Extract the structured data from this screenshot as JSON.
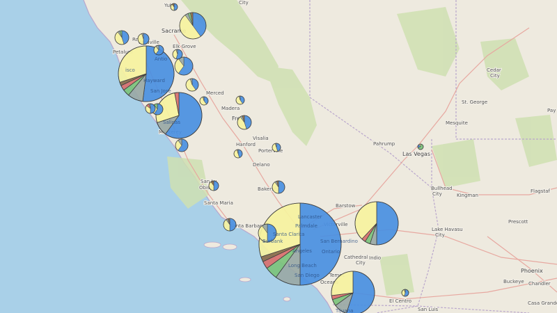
{
  "map": {
    "colors": {
      "ocean": "#a9d0e8",
      "land": "#eeeadf",
      "park": "#cfe0b2",
      "road": "#e7a8a0",
      "border": "#b9a6cc",
      "pie_blue": "#4a90e2",
      "pie_yellow": "#f7f3a0",
      "pie_gray": "#9aa9a6",
      "pie_green": "#7cc47c",
      "pie_red": "#d9706e",
      "pie_brown": "#8b6d4a",
      "pie_stroke": "#333333"
    },
    "places": [
      {
        "name": "Yuba"
      },
      {
        "name": "Sacrame"
      },
      {
        "name": "City"
      },
      {
        "name": "Ros"
      },
      {
        "name": "Vacaville"
      },
      {
        "name": "Elk Grove"
      },
      {
        "name": "Petalum"
      },
      {
        "name": "isco"
      },
      {
        "name": "Antio"
      },
      {
        "name": "Hayward"
      },
      {
        "name": "San Jose"
      },
      {
        "name": "Merced"
      },
      {
        "name": "Madera"
      },
      {
        "name": "Salinas"
      },
      {
        "name": "Monterey"
      },
      {
        "name": "Fre"
      },
      {
        "name": "Visalia"
      },
      {
        "name": "Hanford"
      },
      {
        "name": "Porterville"
      },
      {
        "name": "Delano"
      },
      {
        "name": "San Lu"
      },
      {
        "name": "Obisp"
      },
      {
        "name": "Bakersfi"
      },
      {
        "name": "Santa Maria"
      },
      {
        "name": "Santa Barbara"
      },
      {
        "name": "Lancaster"
      },
      {
        "name": "Palmdale"
      },
      {
        "name": "Barstow"
      },
      {
        "name": "Victorville"
      },
      {
        "name": "Santa Clarita"
      },
      {
        "name": "Burbank"
      },
      {
        "name": "San Bernardino"
      },
      {
        "name": "Angeles"
      },
      {
        "name": "Ontario"
      },
      {
        "name": "Long Beach"
      },
      {
        "name": "San Diego"
      },
      {
        "name": "Cathedral"
      },
      {
        "name": "City"
      },
      {
        "name": "Indio"
      },
      {
        "name": "Temec"
      },
      {
        "name": "Oceans"
      },
      {
        "name": "Tijuana"
      },
      {
        "name": "El Centro"
      },
      {
        "name": "San Luis"
      },
      {
        "name": "Pahrump"
      },
      {
        "name": "Las Vegas"
      },
      {
        "name": "St. George"
      },
      {
        "name": "Mesquite"
      },
      {
        "name": "Cedar"
      },
      {
        "name": "City"
      },
      {
        "name": "Bullhead"
      },
      {
        "name": "City"
      },
      {
        "name": "Kingman"
      },
      {
        "name": "Flagstaf"
      },
      {
        "name": "Lake Havasu"
      },
      {
        "name": "City"
      },
      {
        "name": "Prescott"
      },
      {
        "name": "Phoenix"
      },
      {
        "name": "Buckeye"
      },
      {
        "name": "Chandler"
      },
      {
        "name": "Casa Grande"
      },
      {
        "name": "Pay"
      }
    ],
    "pies": [
      {
        "id": "yuba",
        "slices": [
          {
            "c": "pie_blue",
            "v": 50
          },
          {
            "c": "pie_yellow",
            "v": 40
          },
          {
            "c": "pie_brown",
            "v": 10
          }
        ]
      },
      {
        "id": "sacramento",
        "slices": [
          {
            "c": "pie_blue",
            "v": 40
          },
          {
            "c": "pie_yellow",
            "v": 50
          },
          {
            "c": "pie_gray",
            "v": 4
          },
          {
            "c": "pie_green",
            "v": 3
          },
          {
            "c": "pie_brown",
            "v": 3
          }
        ]
      },
      {
        "id": "santa-rosa",
        "slices": [
          {
            "c": "pie_blue",
            "v": 45
          },
          {
            "c": "pie_yellow",
            "v": 45
          },
          {
            "c": "pie_gray",
            "v": 5
          },
          {
            "c": "pie_green",
            "v": 5
          }
        ]
      },
      {
        "id": "vacaville",
        "slices": [
          {
            "c": "pie_blue",
            "v": 50
          },
          {
            "c": "pie_yellow",
            "v": 45
          },
          {
            "c": "pie_gray",
            "v": 5
          }
        ]
      },
      {
        "id": "petaluma",
        "slices": [
          {
            "c": "pie_blue",
            "v": 60
          },
          {
            "c": "pie_yellow",
            "v": 30
          },
          {
            "c": "pie_gray",
            "v": 10
          }
        ]
      },
      {
        "id": "elk-grove",
        "slices": [
          {
            "c": "pie_blue",
            "v": 55
          },
          {
            "c": "pie_yellow",
            "v": 40
          },
          {
            "c": "pie_gray",
            "v": 5
          }
        ]
      },
      {
        "id": "san-francisco",
        "slices": [
          {
            "c": "pie_blue",
            "v": 52
          },
          {
            "c": "pie_gray",
            "v": 9
          },
          {
            "c": "pie_green",
            "v": 4
          },
          {
            "c": "pie_red",
            "v": 3
          },
          {
            "c": "pie_brown",
            "v": 2
          },
          {
            "c": "pie_yellow",
            "v": 30
          }
        ]
      },
      {
        "id": "antioch",
        "slices": [
          {
            "c": "pie_blue",
            "v": 60
          },
          {
            "c": "pie_yellow",
            "v": 30
          },
          {
            "c": "pie_gray",
            "v": 10
          }
        ]
      },
      {
        "id": "tracy",
        "slices": [
          {
            "c": "pie_blue",
            "v": 40
          },
          {
            "c": "pie_yellow",
            "v": 55
          },
          {
            "c": "pie_gray",
            "v": 5
          }
        ]
      },
      {
        "id": "merced",
        "slices": [
          {
            "c": "pie_blue",
            "v": 40
          },
          {
            "c": "pie_yellow",
            "v": 55
          },
          {
            "c": "pie_gray",
            "v": 5
          }
        ]
      },
      {
        "id": "san-jose",
        "slices": [
          {
            "c": "pie_blue",
            "v": 60
          },
          {
            "c": "pie_gray",
            "v": 10
          },
          {
            "c": "pie_yellow",
            "v": 27
          },
          {
            "c": "pie_red",
            "v": 3
          }
        ]
      },
      {
        "id": "santa-cruz",
        "slices": [
          {
            "c": "pie_blue",
            "v": 50
          },
          {
            "c": "pie_yellow",
            "v": 35
          },
          {
            "c": "pie_red",
            "v": 10
          },
          {
            "c": "pie_gray",
            "v": 5
          }
        ]
      },
      {
        "id": "gilroy",
        "slices": [
          {
            "c": "pie_blue",
            "v": 60
          },
          {
            "c": "pie_yellow",
            "v": 30
          },
          {
            "c": "pie_green",
            "v": 10
          }
        ]
      },
      {
        "id": "madera",
        "slices": [
          {
            "c": "pie_blue",
            "v": 40
          },
          {
            "c": "pie_yellow",
            "v": 55
          },
          {
            "c": "pie_gray",
            "v": 5
          }
        ]
      },
      {
        "id": "fresno",
        "slices": [
          {
            "c": "pie_blue",
            "v": 45
          },
          {
            "c": "pie_yellow",
            "v": 45
          },
          {
            "c": "pie_gray",
            "v": 5
          },
          {
            "c": "pie_brown",
            "v": 5
          }
        ]
      },
      {
        "id": "salinas-south",
        "slices": [
          {
            "c": "pie_blue",
            "v": 60
          },
          {
            "c": "pie_yellow",
            "v": 30
          },
          {
            "c": "pie_gray",
            "v": 10
          }
        ]
      },
      {
        "id": "hanford",
        "slices": [
          {
            "c": "pie_blue",
            "v": 45
          },
          {
            "c": "pie_yellow",
            "v": 50
          },
          {
            "c": "pie_gray",
            "v": 5
          }
        ]
      },
      {
        "id": "porterville",
        "slices": [
          {
            "c": "pie_blue",
            "v": 45
          },
          {
            "c": "pie_yellow",
            "v": 50
          },
          {
            "c": "pie_gray",
            "v": 5
          }
        ]
      },
      {
        "id": "san-luis-obispo",
        "slices": [
          {
            "c": "pie_blue",
            "v": 50
          },
          {
            "c": "pie_yellow",
            "v": 40
          },
          {
            "c": "pie_brown",
            "v": 10
          }
        ]
      },
      {
        "id": "bakersfield",
        "slices": [
          {
            "c": "pie_blue",
            "v": 50
          },
          {
            "c": "pie_yellow",
            "v": 40
          },
          {
            "c": "pie_gray",
            "v": 5
          },
          {
            "c": "pie_brown",
            "v": 5
          }
        ]
      },
      {
        "id": "santa-barbara",
        "slices": [
          {
            "c": "pie_blue",
            "v": 50
          },
          {
            "c": "pie_yellow",
            "v": 40
          },
          {
            "c": "pie_gray",
            "v": 5
          },
          {
            "c": "pie_brown",
            "v": 5
          }
        ]
      },
      {
        "id": "ventura",
        "slices": [
          {
            "c": "pie_blue",
            "v": 50
          },
          {
            "c": "pie_yellow",
            "v": 40
          },
          {
            "c": "pie_gray",
            "v": 10
          }
        ]
      },
      {
        "id": "los-angeles",
        "slices": [
          {
            "c": "pie_blue",
            "v": 50
          },
          {
            "c": "pie_gray",
            "v": 10
          },
          {
            "c": "pie_green",
            "v": 5
          },
          {
            "c": "pie_red",
            "v": 3
          },
          {
            "c": "pie_brown",
            "v": 2
          },
          {
            "c": "pie_yellow",
            "v": 30
          }
        ]
      },
      {
        "id": "victorville",
        "slices": [
          {
            "c": "pie_blue",
            "v": 50
          },
          {
            "c": "pie_gray",
            "v": 5
          },
          {
            "c": "pie_green",
            "v": 4
          },
          {
            "c": "pie_red",
            "v": 3
          },
          {
            "c": "pie_yellow",
            "v": 38
          }
        ]
      },
      {
        "id": "san-diego",
        "slices": [
          {
            "c": "pie_blue",
            "v": 55
          },
          {
            "c": "pie_gray",
            "v": 10
          },
          {
            "c": "pie_green",
            "v": 5
          },
          {
            "c": "pie_red",
            "v": 3
          },
          {
            "c": "pie_yellow",
            "v": 27
          }
        ]
      },
      {
        "id": "el-centro",
        "slices": [
          {
            "c": "pie_blue",
            "v": 55
          },
          {
            "c": "pie_yellow",
            "v": 40
          },
          {
            "c": "pie_gray",
            "v": 5
          }
        ]
      },
      {
        "id": "las-vegas",
        "slices": [
          {
            "c": "pie_green",
            "v": 70
          },
          {
            "c": "pie_blue",
            "v": 20
          },
          {
            "c": "pie_yellow",
            "v": 10
          }
        ]
      }
    ]
  }
}
